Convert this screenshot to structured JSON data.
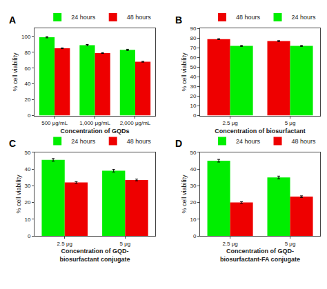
{
  "chart_data": [
    {
      "type": "bar",
      "label": "A",
      "categories": [
        "500 μg/mL",
        "1,000 μg/mL",
        "2,000 μg/mL"
      ],
      "series": [
        {
          "name": "24 hours",
          "color": "#00EE00",
          "values": [
            99,
            89,
            83
          ],
          "errors": [
            0.8,
            0.8,
            0.8
          ]
        },
        {
          "name": "48 hours",
          "color": "#EE0000",
          "values": [
            85,
            79,
            68
          ],
          "errors": [
            0.5,
            0.5,
            0.5
          ]
        }
      ],
      "xlabel": "Concentration of GQDs",
      "ylabel": "% cell viability",
      "ylim": [
        0,
        110
      ],
      "yticks": [
        0,
        20,
        40,
        60,
        80,
        100
      ],
      "grid": false,
      "legend": "upper right"
    },
    {
      "type": "bar",
      "label": "B",
      "categories": [
        "2.5 μg",
        "5 μg"
      ],
      "series": [
        {
          "name": "48 hours",
          "color": "#EE0000",
          "values": [
            79,
            77
          ],
          "errors": [
            0.5,
            0.5
          ]
        },
        {
          "name": "24 hours",
          "color": "#00EE00",
          "values": [
            72,
            72
          ],
          "errors": [
            0.5,
            0.5
          ]
        }
      ],
      "xlabel": "Concentration of biosurfactant",
      "ylabel": "% cell viability",
      "ylim": [
        0,
        90
      ],
      "yticks": [
        0,
        10,
        20,
        30,
        40,
        50,
        60,
        70,
        80,
        90
      ],
      "grid": false,
      "legend": "upper right"
    },
    {
      "type": "bar",
      "label": "C",
      "categories": [
        "2.5 μg",
        "5 μg"
      ],
      "series": [
        {
          "name": "24 hours",
          "color": "#00EE00",
          "values": [
            45.5,
            39
          ],
          "errors": [
            0.8,
            0.8
          ]
        },
        {
          "name": "48 hours",
          "color": "#EE0000",
          "values": [
            32,
            33.5
          ],
          "errors": [
            0.5,
            0.5
          ]
        }
      ],
      "xlabel": "Concentration of GQD-\nbiosurfactant conjugate",
      "ylabel": "% cell viability",
      "ylim": [
        0,
        50
      ],
      "yticks": [
        0,
        10,
        20,
        30,
        40,
        50
      ],
      "grid": false,
      "legend": "upper right"
    },
    {
      "type": "bar",
      "label": "D",
      "categories": [
        "2.5 μg",
        "5 μg"
      ],
      "series": [
        {
          "name": "24 hours",
          "color": "#00EE00",
          "values": [
            45,
            35
          ],
          "errors": [
            0.8,
            0.8
          ]
        },
        {
          "name": "48 hours",
          "color": "#EE0000",
          "values": [
            20,
            23.5
          ],
          "errors": [
            0.5,
            0.5
          ]
        }
      ],
      "xlabel": "Concentration of GQD-\nbiosurfactant-FA conjugate",
      "ylabel": "% cell viability",
      "ylim": [
        0,
        50
      ],
      "yticks": [
        0,
        10,
        20,
        30,
        40,
        50
      ],
      "grid": false,
      "legend": "upper right"
    }
  ]
}
